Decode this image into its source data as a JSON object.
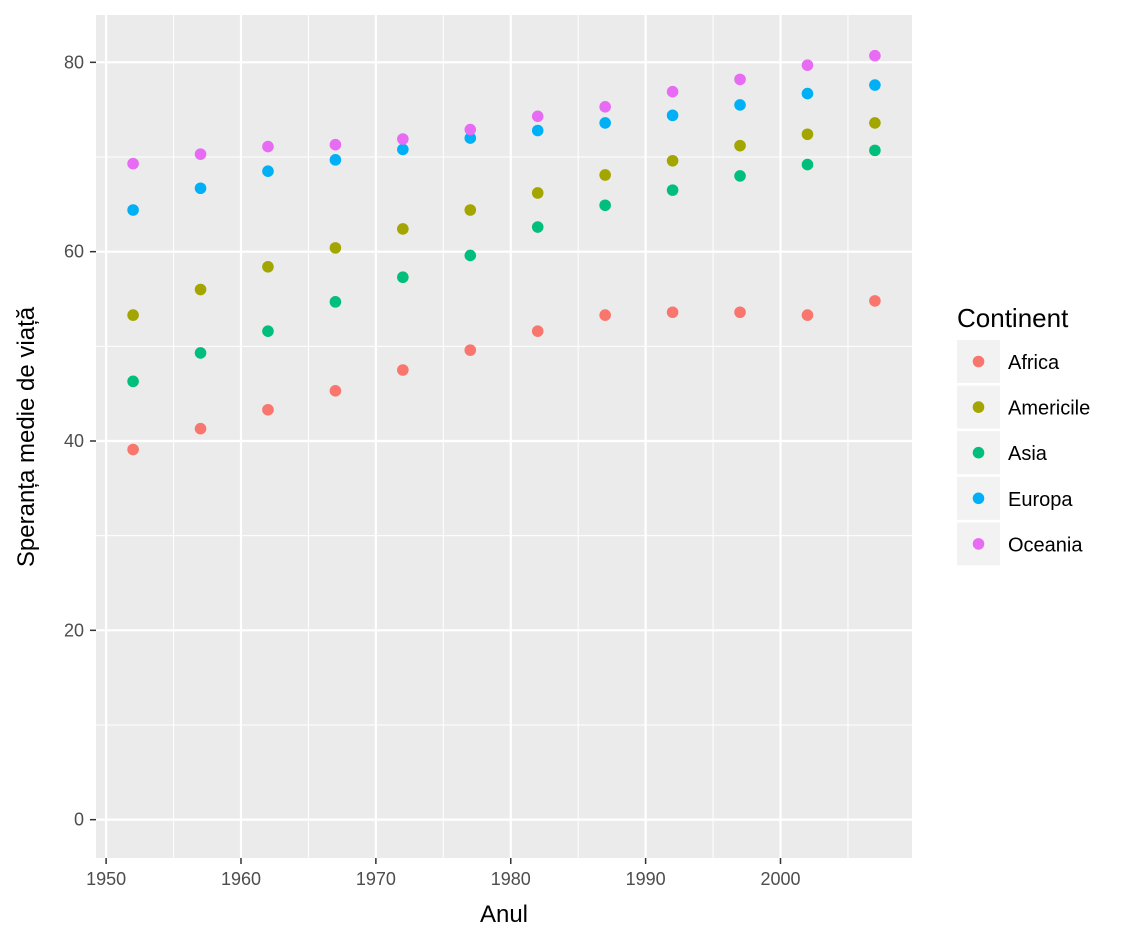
{
  "chart_data": {
    "type": "scatter",
    "title": "",
    "xlabel": "Anul",
    "ylabel": "Speranța medie de viață",
    "x": [
      1952,
      1957,
      1962,
      1967,
      1972,
      1977,
      1982,
      1987,
      1992,
      1997,
      2002,
      2007
    ],
    "xlim": [
      1949.25,
      2009.75
    ],
    "ylim": [
      -4.05,
      85
    ],
    "x_ticks": [
      1950,
      1960,
      1970,
      1980,
      1990,
      2000
    ],
    "y_ticks": [
      0,
      20,
      40,
      60,
      80
    ],
    "grid": true,
    "legend_position": "right",
    "legend": {
      "title": "Continent"
    },
    "series": [
      {
        "name": "Africa",
        "color": "#F8766D",
        "values": [
          39.1,
          41.3,
          43.3,
          45.3,
          47.5,
          49.6,
          51.6,
          53.3,
          53.6,
          53.6,
          53.3,
          54.8
        ]
      },
      {
        "name": "Americile",
        "color": "#A3A500",
        "values": [
          53.3,
          56.0,
          58.4,
          60.4,
          62.4,
          64.4,
          66.2,
          68.1,
          69.6,
          71.2,
          72.4,
          73.6
        ]
      },
      {
        "name": "Asia",
        "color": "#00BF7D",
        "values": [
          46.3,
          49.3,
          51.6,
          54.7,
          57.3,
          59.6,
          62.6,
          64.9,
          66.5,
          68.0,
          69.2,
          70.7
        ]
      },
      {
        "name": "Europa",
        "color": "#00B0F6",
        "values": [
          64.4,
          66.7,
          68.5,
          69.7,
          70.8,
          72.0,
          72.8,
          73.6,
          74.4,
          75.5,
          76.7,
          77.6
        ]
      },
      {
        "name": "Oceania",
        "color": "#E76BF3",
        "values": [
          69.3,
          70.3,
          71.1,
          71.3,
          71.9,
          72.9,
          74.3,
          75.3,
          76.9,
          78.2,
          79.7,
          80.7
        ]
      }
    ]
  }
}
